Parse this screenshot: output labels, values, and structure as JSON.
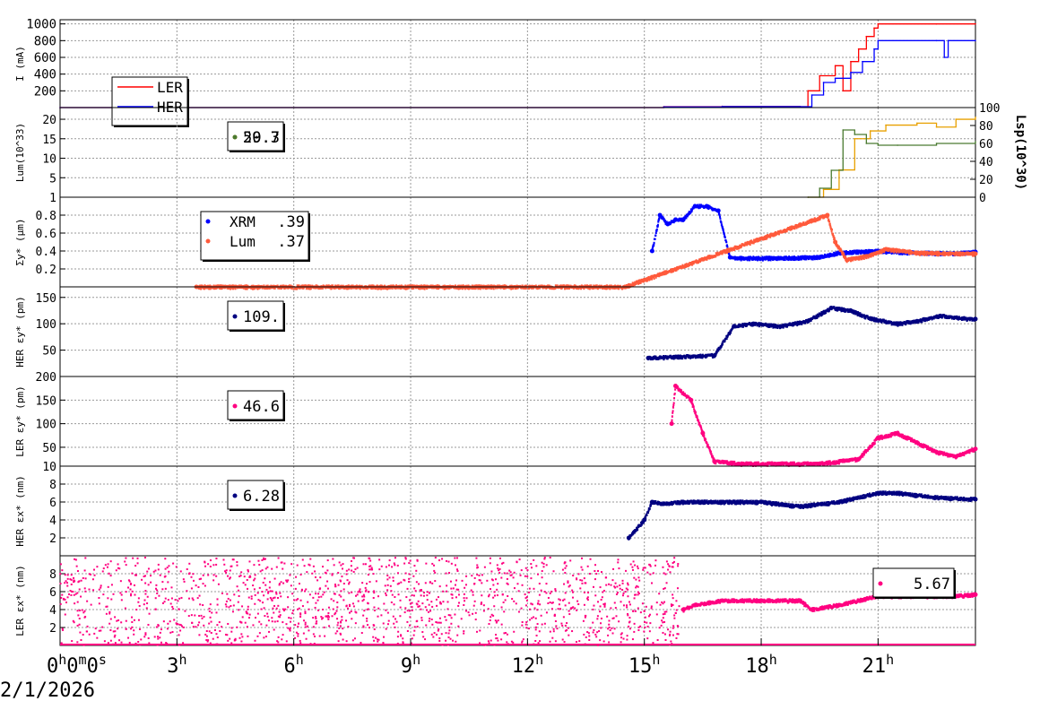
{
  "date_label": "2/1/2026",
  "time_axis": {
    "start_label": "0h0m0s",
    "ticks": [
      {
        "hour": 3,
        "label": "3h"
      },
      {
        "hour": 6,
        "label": "6h"
      },
      {
        "hour": 9,
        "label": "9h"
      },
      {
        "hour": 12,
        "label": "12h"
      },
      {
        "hour": 15,
        "label": "15h"
      },
      {
        "hour": 18,
        "label": "18h"
      },
      {
        "hour": 21,
        "label": "21h"
      }
    ]
  },
  "chart_data": [
    {
      "type": "line",
      "id": "current",
      "ylabel": "I (mA)",
      "ylim": [
        0,
        1050
      ],
      "yticks": [
        200,
        400,
        600,
        800,
        1000
      ],
      "grid": true,
      "legend": {
        "placement": "top-left",
        "entries": [
          {
            "name": "LER",
            "color": "#ff0000"
          },
          {
            "name": "HER",
            "color": "#0000ff"
          }
        ]
      },
      "series": [
        {
          "name": "LER",
          "color": "#ff0000",
          "x": [
            0,
            15.5,
            17.0,
            19.0,
            19.2,
            19.5,
            19.9,
            20.1,
            20.3,
            20.5,
            20.7,
            20.9,
            21.0,
            22.5,
            23.5
          ],
          "y": [
            0,
            10,
            15,
            10,
            200,
            380,
            500,
            200,
            550,
            700,
            850,
            950,
            1000,
            1000,
            1000
          ]
        },
        {
          "name": "HER",
          "color": "#0000ff",
          "x": [
            0,
            15.5,
            17.0,
            19.0,
            19.3,
            19.6,
            19.9,
            20.3,
            20.6,
            20.9,
            21.0,
            22.5,
            22.7,
            22.8,
            23.5
          ],
          "y": [
            0,
            8,
            12,
            10,
            150,
            300,
            350,
            420,
            550,
            700,
            800,
            800,
            600,
            800,
            800
          ]
        }
      ]
    },
    {
      "type": "line",
      "id": "luminosity",
      "ylabel": "Lum(10^33)",
      "y2label": "Lsp(10^30)",
      "ylim": [
        0,
        23
      ],
      "yticks": [
        5,
        10,
        15,
        20
      ],
      "y2lim": [
        0,
        100
      ],
      "y2ticks": [
        0,
        20,
        40,
        60,
        80,
        100
      ],
      "grid": true,
      "legend": {
        "placement": "top-left",
        "entries": [
          {
            "label": "20.7",
            "color": "#e8a000"
          },
          {
            "label": "59.3",
            "color": "#4a7a30"
          }
        ]
      },
      "series": [
        {
          "color": "#e8a000",
          "axis": "left",
          "x": [
            19.2,
            19.6,
            20.0,
            20.4,
            20.8,
            21.2,
            22.0,
            22.5,
            23.0,
            23.5
          ],
          "y": [
            0,
            2,
            7,
            15,
            17,
            18.5,
            19,
            18,
            20,
            20.5
          ]
        },
        {
          "color": "#4a7a30",
          "axis": "right",
          "x": [
            19.2,
            19.5,
            19.8,
            20.1,
            20.4,
            20.7,
            21.0,
            21.5,
            22.5,
            23.5
          ],
          "y": [
            0,
            10,
            30,
            75,
            70,
            60,
            58,
            58,
            60,
            62
          ]
        }
      ]
    },
    {
      "type": "scatter",
      "id": "sigma_y",
      "ylabel": "Σy* (μm)",
      "ylim": [
        0,
        1
      ],
      "yticks": [
        0.2,
        0.4,
        0.6,
        0.8,
        1
      ],
      "grid": true,
      "legend": {
        "placement": "top-left",
        "entries": [
          {
            "name": "XRM",
            "value": ".39",
            "color": "#0000ff"
          },
          {
            "name": "Lum",
            "value": ".37",
            "color": "#ff5a3c"
          }
        ]
      },
      "series": [
        {
          "name": "XRM",
          "color": "#0000ff",
          "x": [
            15.2,
            15.4,
            15.6,
            15.8,
            16.0,
            16.3,
            16.6,
            16.9,
            17.2,
            17.5,
            18.5,
            19.5,
            20.0,
            21.0,
            22.0,
            23.0,
            23.5
          ],
          "y": [
            0.4,
            0.8,
            0.7,
            0.75,
            0.75,
            0.9,
            0.9,
            0.85,
            0.33,
            0.32,
            0.32,
            0.33,
            0.38,
            0.4,
            0.38,
            0.37,
            0.39
          ]
        },
        {
          "name": "Lum",
          "color": "#ff5a3c",
          "x": [
            3.5,
            8.5,
            10.3,
            14.5,
            19.7,
            19.9,
            20.2,
            20.8,
            21.2,
            22.0,
            23.0,
            23.5
          ],
          "y": [
            0,
            0,
            0,
            0,
            0.8,
            0.5,
            0.3,
            0.35,
            0.42,
            0.38,
            0.37,
            0.37
          ]
        }
      ]
    },
    {
      "type": "scatter",
      "id": "her_eps_y",
      "ylabel": "HER εy* (pm)",
      "ylim": [
        0,
        170
      ],
      "yticks": [
        50,
        100,
        150
      ],
      "grid": true,
      "legend": {
        "placement": "top-left",
        "entries": [
          {
            "value": "109.",
            "color": "#000080"
          }
        ]
      },
      "series": [
        {
          "color": "#000080",
          "x": [
            15.1,
            16.8,
            17.3,
            17.8,
            18.5,
            19.2,
            19.8,
            20.3,
            20.8,
            21.5,
            22.0,
            22.6,
            23.2,
            23.5
          ],
          "y": [
            35,
            40,
            95,
            100,
            95,
            105,
            130,
            125,
            110,
            100,
            105,
            115,
            110,
            109
          ]
        }
      ]
    },
    {
      "type": "scatter",
      "id": "ler_eps_y",
      "ylabel": "LER εy* (pm)",
      "ylim": [
        10,
        200
      ],
      "yticks": [
        50,
        100,
        150,
        200
      ],
      "extra_ticks": [
        10
      ],
      "grid": true,
      "legend": {
        "placement": "top-left",
        "entries": [
          {
            "value": "46.6",
            "color": "#ff0080"
          }
        ]
      },
      "series": [
        {
          "color": "#ff0080",
          "x": [
            15.7,
            15.8,
            16.2,
            16.5,
            16.8,
            17.5,
            18.5,
            19.5,
            20.5,
            21.0,
            21.5,
            22.0,
            22.5,
            23.0,
            23.5
          ],
          "y": [
            100,
            180,
            150,
            80,
            20,
            15,
            15,
            15,
            25,
            70,
            80,
            60,
            40,
            30,
            46.6
          ]
        }
      ]
    },
    {
      "type": "scatter",
      "id": "her_eps_x",
      "ylabel": "HER εx* (nm)",
      "ylim": [
        0,
        10
      ],
      "yticks": [
        2,
        4,
        6,
        8
      ],
      "grid": true,
      "legend": {
        "placement": "top-left",
        "entries": [
          {
            "value": "6.28",
            "color": "#000080"
          }
        ]
      },
      "series": [
        {
          "color": "#000080",
          "x": [
            14.6,
            15.0,
            15.2,
            15.5,
            16.0,
            17.0,
            18.0,
            19.0,
            20.0,
            21.0,
            21.5,
            22.5,
            23.5
          ],
          "y": [
            2,
            4,
            6,
            5.8,
            6,
            6,
            6,
            5.5,
            6,
            7,
            7,
            6.5,
            6.3
          ]
        }
      ]
    },
    {
      "type": "scatter",
      "id": "ler_eps_x",
      "ylabel": "LER εx* (nm)",
      "ylim": [
        0,
        10
      ],
      "yticks": [
        2,
        4,
        6,
        8
      ],
      "grid": true,
      "legend": {
        "placement": "top-right",
        "entries": [
          {
            "value": "5.67",
            "color": "#ff0080"
          }
        ]
      },
      "series": [
        {
          "color": "#ff0080",
          "x": [
            16.0,
            16.3,
            17.0,
            18.0,
            19.0,
            19.3,
            20.0,
            21.0,
            22.0,
            23.0,
            23.5
          ],
          "y": [
            4,
            4.5,
            5,
            5,
            5,
            4,
            4.5,
            5.5,
            5.5,
            5.5,
            5.67
          ]
        }
      ]
    }
  ]
}
